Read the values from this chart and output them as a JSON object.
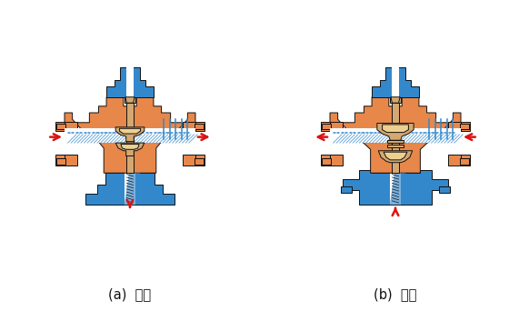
{
  "label_a": "(a)  分流",
  "label_b": "(b)  合流",
  "orange": "#E8874A",
  "blue": "#3388CC",
  "tan": "#D4A870",
  "tan_light": "#EDD090",
  "white": "#FFFFFF",
  "red": "#DD1111",
  "black": "#111111",
  "bg": "#FFFFFF",
  "font_size": 10.5,
  "lw": 0.7
}
